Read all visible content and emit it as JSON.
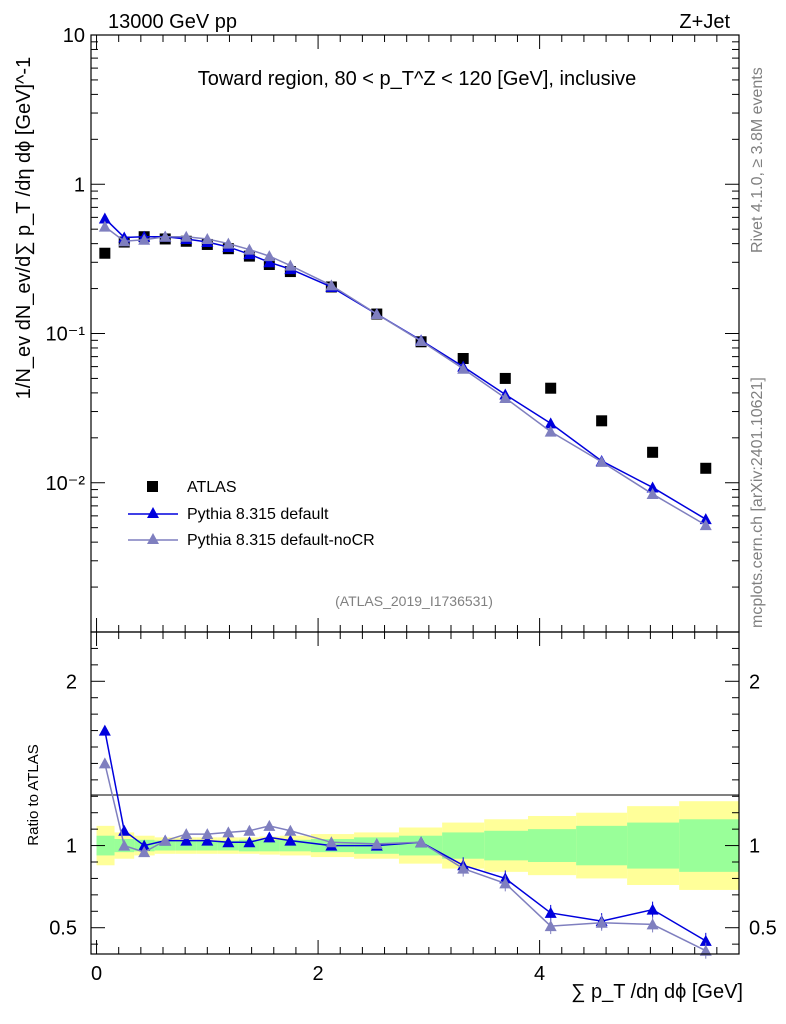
{
  "header": {
    "left": "13000 GeV pp",
    "right": "Z+Jet"
  },
  "sidebar": {
    "rivet": "Rivet 4.1.0, ≥ 3.8M events",
    "mcplots": "mcplots.cern.ch [arXiv:2401.10621]"
  },
  "chart_data": {
    "type": "scatter",
    "title": "Toward region, 80 < p_T^Z < 120 [GeV], inclusive",
    "analysis_tag": "(ATLAS_2019_I1736531)",
    "xlabel": "∑ p_T /dη dϕ [GeV]",
    "ylabel": "1/N_ev dN_ev/d∑ p_T /dη dϕ [GeV]^-1",
    "ratio_ylabel": "Ratio to ATLAS",
    "xlim": [
      -0.05,
      5.8
    ],
    "ylim": [
      0.001,
      10
    ],
    "ratio_ylim": [
      0.34,
      2.3
    ],
    "yscale": "log",
    "x_ticks": [
      "0",
      "2",
      "4"
    ],
    "y_ticks": [
      "10",
      "1",
      "10⁻¹",
      "10⁻²"
    ],
    "ratio_ticks": [
      "0.5",
      "1",
      "2"
    ],
    "x": [
      0.075,
      0.25,
      0.43,
      0.62,
      0.81,
      1.0,
      1.19,
      1.38,
      1.56,
      1.75,
      2.12,
      2.53,
      2.93,
      3.31,
      3.69,
      4.1,
      4.56,
      5.02,
      5.5
    ],
    "series": [
      {
        "name": "ATLAS",
        "color": "#000000",
        "marker": "square",
        "values": [
          0.345,
          0.41,
          0.445,
          0.43,
          0.415,
          0.395,
          0.37,
          0.33,
          0.29,
          0.26,
          0.205,
          0.135,
          0.088,
          0.068,
          0.05,
          0.043,
          0.026,
          0.016,
          0.0125
        ],
        "ratio": [
          1,
          1,
          1,
          1,
          1,
          1,
          1,
          1,
          1,
          1,
          1,
          1,
          1,
          1,
          1,
          1,
          1,
          1,
          1
        ],
        "band_inner": [
          0.06,
          0.04,
          0.035,
          0.03,
          0.03,
          0.03,
          0.03,
          0.035,
          0.035,
          0.035,
          0.04,
          0.05,
          0.06,
          0.08,
          0.09,
          0.1,
          0.12,
          0.14,
          0.16
        ],
        "band_outer": [
          0.12,
          0.08,
          0.06,
          0.05,
          0.05,
          0.05,
          0.05,
          0.05,
          0.055,
          0.06,
          0.07,
          0.08,
          0.11,
          0.14,
          0.16,
          0.18,
          0.2,
          0.24,
          0.27
        ]
      },
      {
        "name": "Pythia 8.315 default",
        "color": "#0000dd",
        "marker": "triangle",
        "values": [
          0.59,
          0.44,
          0.445,
          0.445,
          0.43,
          0.41,
          0.38,
          0.34,
          0.3,
          0.27,
          0.205,
          0.135,
          0.09,
          0.06,
          0.039,
          0.025,
          0.014,
          0.0093,
          0.0057
        ],
        "ratio": [
          1.7,
          1.09,
          1.0,
          1.03,
          1.03,
          1.03,
          1.02,
          1.02,
          1.05,
          1.03,
          1.0,
          1.0,
          1.02,
          0.88,
          0.8,
          0.59,
          0.54,
          0.61,
          0.42
        ]
      },
      {
        "name": "Pythia 8.315 default-noCR",
        "color": "#7f7fbf",
        "marker": "triangle",
        "values": [
          0.52,
          0.415,
          0.425,
          0.445,
          0.445,
          0.43,
          0.4,
          0.365,
          0.33,
          0.285,
          0.21,
          0.135,
          0.089,
          0.058,
          0.037,
          0.022,
          0.0138,
          0.0084,
          0.0052
        ],
        "ratio": [
          1.5,
          1.0,
          0.96,
          1.03,
          1.07,
          1.07,
          1.08,
          1.09,
          1.12,
          1.09,
          1.02,
          1.01,
          1.02,
          0.86,
          0.77,
          0.51,
          0.53,
          0.52,
          0.36
        ]
      }
    ]
  }
}
